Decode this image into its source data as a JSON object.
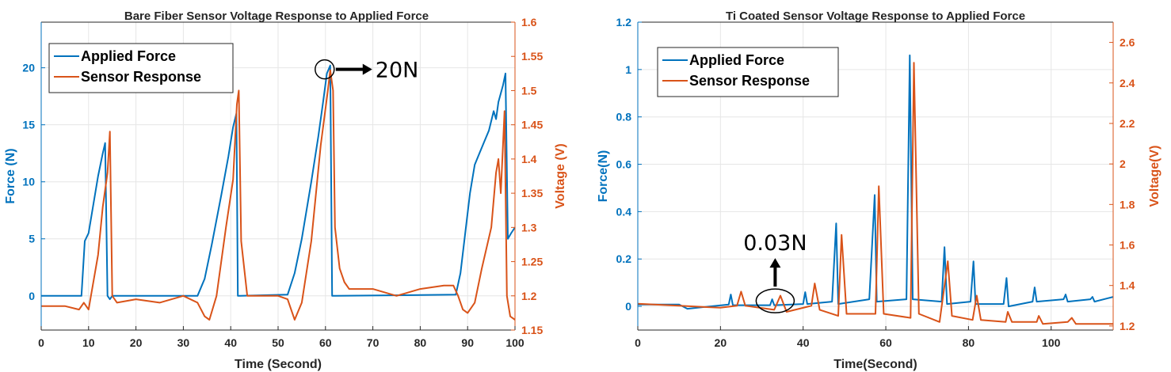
{
  "colors": {
    "force": "#0072BD",
    "voltage": "#D95319",
    "axis": "#262626"
  },
  "chart_data": [
    {
      "type": "line",
      "title": "Bare Fiber Sensor Voltage Response to Applied Force",
      "xlabel": "Time (Second)",
      "ylabel_left": "Force (N)",
      "ylabel_right": "Voltage (V)",
      "xlim": [
        0,
        100
      ],
      "ylim_left": [
        -3,
        24
      ],
      "ylim_right": [
        1.15,
        1.6
      ],
      "xticks": [
        0,
        10,
        20,
        30,
        40,
        50,
        60,
        70,
        80,
        90,
        100
      ],
      "yticks_left": [
        0,
        5,
        10,
        15,
        20
      ],
      "yticks_right": [
        1.15,
        1.2,
        1.25,
        1.3,
        1.35,
        1.4,
        1.45,
        1.5,
        1.55,
        1.6
      ],
      "legend": [
        "Applied Force",
        "Sensor Response"
      ],
      "annotation": {
        "text": "20N",
        "x": 60.5,
        "y": 20
      },
      "series": [
        {
          "name": "Applied Force",
          "axis": "left",
          "points": [
            [
              0,
              0
            ],
            [
              8.5,
              0
            ],
            [
              9.2,
              4.8
            ],
            [
              10,
              5.5
            ],
            [
              11,
              8
            ],
            [
              12,
              10.5
            ],
            [
              13,
              12.5
            ],
            [
              13.5,
              13.4
            ],
            [
              14,
              0
            ],
            [
              14.5,
              -0.3
            ],
            [
              15,
              0
            ],
            [
              33,
              0
            ],
            [
              34.5,
              1.5
            ],
            [
              36,
              4.5
            ],
            [
              38,
              8.8
            ],
            [
              39.5,
              12.2
            ],
            [
              40.5,
              14.8
            ],
            [
              41.2,
              16
            ],
            [
              41.5,
              0
            ],
            [
              42,
              0
            ],
            [
              52,
              0.1
            ],
            [
              53.5,
              2
            ],
            [
              55,
              5
            ],
            [
              57,
              10
            ],
            [
              58.5,
              14
            ],
            [
              59.5,
              17
            ],
            [
              60.3,
              19.5
            ],
            [
              61,
              20.2
            ],
            [
              61.4,
              0
            ],
            [
              62,
              0
            ],
            [
              87.5,
              0.1
            ],
            [
              88.5,
              2
            ],
            [
              89.5,
              5.5
            ],
            [
              90.5,
              9
            ],
            [
              91.5,
              11.5
            ],
            [
              92.5,
              12.5
            ],
            [
              93.5,
              13.5
            ],
            [
              94.5,
              14.5
            ],
            [
              95.5,
              16.2
            ],
            [
              96,
              15.5
            ],
            [
              96.5,
              17
            ],
            [
              97.5,
              18.5
            ],
            [
              98,
              19.5
            ],
            [
              98.5,
              5
            ],
            [
              99.2,
              5.5
            ],
            [
              100,
              6
            ]
          ]
        },
        {
          "name": "Sensor Response",
          "axis": "right",
          "points": [
            [
              0,
              1.185
            ],
            [
              5,
              1.185
            ],
            [
              8,
              1.18
            ],
            [
              9,
              1.19
            ],
            [
              10,
              1.18
            ],
            [
              11,
              1.22
            ],
            [
              12,
              1.26
            ],
            [
              13,
              1.33
            ],
            [
              14,
              1.38
            ],
            [
              14.5,
              1.44
            ],
            [
              15,
              1.2
            ],
            [
              16,
              1.19
            ],
            [
              20,
              1.195
            ],
            [
              25,
              1.19
            ],
            [
              30,
              1.2
            ],
            [
              33,
              1.19
            ],
            [
              34.5,
              1.17
            ],
            [
              35.5,
              1.165
            ],
            [
              37,
              1.2
            ],
            [
              39,
              1.3
            ],
            [
              40.5,
              1.37
            ],
            [
              41.3,
              1.48
            ],
            [
              41.7,
              1.5
            ],
            [
              42.2,
              1.28
            ],
            [
              43.5,
              1.2
            ],
            [
              46,
              1.2
            ],
            [
              50,
              1.2
            ],
            [
              52,
              1.195
            ],
            [
              53.5,
              1.165
            ],
            [
              55,
              1.19
            ],
            [
              57,
              1.28
            ],
            [
              59,
              1.42
            ],
            [
              60.5,
              1.5
            ],
            [
              61,
              1.53
            ],
            [
              61.6,
              1.5
            ],
            [
              62,
              1.3
            ],
            [
              63,
              1.24
            ],
            [
              64,
              1.22
            ],
            [
              65,
              1.21
            ],
            [
              70,
              1.21
            ],
            [
              75,
              1.2
            ],
            [
              80,
              1.21
            ],
            [
              85,
              1.215
            ],
            [
              87,
              1.215
            ],
            [
              88,
              1.2
            ],
            [
              89,
              1.18
            ],
            [
              90,
              1.175
            ],
            [
              91.5,
              1.19
            ],
            [
              93,
              1.24
            ],
            [
              95,
              1.3
            ],
            [
              96,
              1.38
            ],
            [
              96.5,
              1.4
            ],
            [
              97,
              1.35
            ],
            [
              97.8,
              1.47
            ],
            [
              98.3,
              1.2
            ],
            [
              99,
              1.17
            ],
            [
              100,
              1.165
            ]
          ]
        }
      ]
    },
    {
      "type": "line",
      "title": "Ti Coated Sensor Voltage Response to Applied Force",
      "xlabel": "Time(Second)",
      "ylabel_left": "Force(N)",
      "ylabel_right": "Voltage(V)",
      "xlim": [
        0,
        115
      ],
      "ylim_left": [
        -0.1,
        1.2
      ],
      "ylim_right": [
        1.18,
        2.7
      ],
      "xticks": [
        0,
        20,
        40,
        60,
        80,
        100
      ],
      "yticks_left": [
        0,
        0.2,
        0.4,
        0.6,
        0.8,
        1,
        1.2
      ],
      "yticks_right": [
        1.2,
        1.4,
        1.6,
        1.8,
        2,
        2.2,
        2.4,
        2.6
      ],
      "legend": [
        "Applied Force",
        "Sensor Response"
      ],
      "annotation": {
        "text": "0.03N",
        "x": 34,
        "y": 0.03
      },
      "series": [
        {
          "name": "Applied Force",
          "axis": "left",
          "points": [
            [
              0,
              0.008
            ],
            [
              10,
              0.008
            ],
            [
              12,
              -0.01
            ],
            [
              22,
              0.008
            ],
            [
              22.5,
              0.05
            ],
            [
              23,
              0.005
            ],
            [
              32,
              0.005
            ],
            [
              32.5,
              0.03
            ],
            [
              33,
              0.005
            ],
            [
              40,
              0.01
            ],
            [
              40.5,
              0.06
            ],
            [
              41,
              0.01
            ],
            [
              47,
              0.02
            ],
            [
              48,
              0.35
            ],
            [
              48.5,
              0.01
            ],
            [
              56,
              0.03
            ],
            [
              57.3,
              0.47
            ],
            [
              57.8,
              0.02
            ],
            [
              65,
              0.03
            ],
            [
              65.8,
              1.06
            ],
            [
              66.5,
              0.03
            ],
            [
              73.5,
              0.02
            ],
            [
              74.2,
              0.25
            ],
            [
              74.8,
              0.01
            ],
            [
              80.5,
              0.02
            ],
            [
              81.2,
              0.19
            ],
            [
              81.7,
              0.01
            ],
            [
              88.5,
              0.01
            ],
            [
              89.2,
              0.12
            ],
            [
              89.7,
              0.0
            ],
            [
              95.5,
              0.02
            ],
            [
              96,
              0.08
            ],
            [
              96.5,
              0.02
            ],
            [
              103,
              0.03
            ],
            [
              103.5,
              0.05
            ],
            [
              104,
              0.02
            ],
            [
              109.5,
              0.03
            ],
            [
              110,
              0.04
            ],
            [
              110.5,
              0.02
            ],
            [
              115,
              0.04
            ]
          ]
        },
        {
          "name": "Sensor Response",
          "axis": "right",
          "points": [
            [
              0,
              1.31
            ],
            [
              10,
              1.3
            ],
            [
              20,
              1.29
            ],
            [
              24,
              1.3
            ],
            [
              25,
              1.37
            ],
            [
              26,
              1.3
            ],
            [
              33,
              1.28
            ],
            [
              34.5,
              1.35
            ],
            [
              36,
              1.27
            ],
            [
              42,
              1.3
            ],
            [
              42.8,
              1.41
            ],
            [
              44,
              1.28
            ],
            [
              48.5,
              1.25
            ],
            [
              49.3,
              1.65
            ],
            [
              50.5,
              1.26
            ],
            [
              57.5,
              1.26
            ],
            [
              58.3,
              1.89
            ],
            [
              59.5,
              1.26
            ],
            [
              66,
              1.24
            ],
            [
              66.8,
              2.5
            ],
            [
              68,
              1.26
            ],
            [
              73,
              1.22
            ],
            [
              75,
              1.52
            ],
            [
              76,
              1.25
            ],
            [
              81,
              1.23
            ],
            [
              82,
              1.35
            ],
            [
              83,
              1.23
            ],
            [
              89,
              1.22
            ],
            [
              89.5,
              1.27
            ],
            [
              90.5,
              1.22
            ],
            [
              96.5,
              1.22
            ],
            [
              97,
              1.25
            ],
            [
              98,
              1.21
            ],
            [
              104,
              1.22
            ],
            [
              105,
              1.24
            ],
            [
              106,
              1.21
            ],
            [
              115,
              1.21
            ]
          ]
        }
      ]
    }
  ]
}
